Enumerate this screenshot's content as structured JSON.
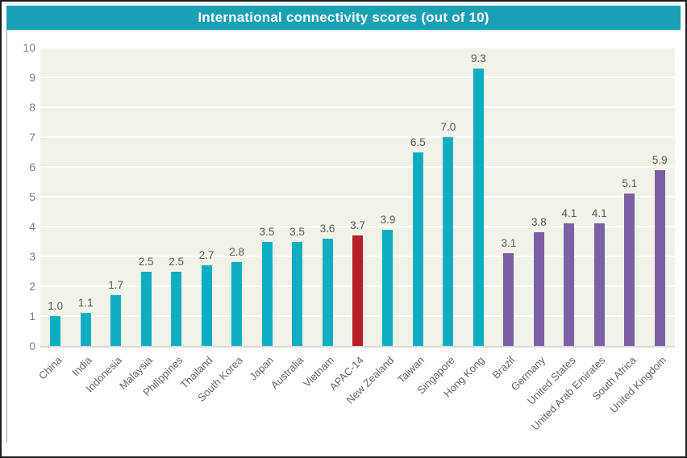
{
  "title": "International connectivity scores (out of 10)",
  "colors": {
    "header_bg": "#1a9fb3",
    "teal_bar": "#0fadc2",
    "red_bar": "#b72025",
    "purple_bar": "#7c5fa4",
    "plot_bg": "#f1f2e8",
    "gridline": "#ffffff",
    "axis_line": "#d9d9d9",
    "axis_text": "#7f7f7f",
    "value_text": "#595959",
    "category_text": "#666666",
    "outer_border": "#1c1c1c"
  },
  "chart_data": {
    "type": "bar",
    "title": "International connectivity scores (out of 10)",
    "xlabel": "",
    "ylabel": "",
    "ylim": [
      0,
      10
    ],
    "yticks": [
      0,
      1,
      2,
      3,
      4,
      5,
      6,
      7,
      8,
      9,
      10
    ],
    "grid": "horizontal",
    "legend": "none",
    "value_labels_shown": true,
    "categories": [
      "China",
      "India",
      "Indonesia",
      "Malaysia",
      "Philippines",
      "Thailand",
      "South Korea",
      "Japan",
      "Australia",
      "Vietnam",
      "APAC-14",
      "New Zealand",
      "Taiwan",
      "Singapore",
      "Hong Kong",
      "Brazil",
      "Germany",
      "United States",
      "United Arab Emirates",
      "South Africa",
      "United Kingdom"
    ],
    "values": [
      1.0,
      1.1,
      1.7,
      2.5,
      2.5,
      2.7,
      2.8,
      3.5,
      3.5,
      3.6,
      3.7,
      3.9,
      6.5,
      7.0,
      9.3,
      3.1,
      3.8,
      4.1,
      4.1,
      5.1,
      5.9
    ],
    "value_labels": [
      "1.0",
      "1.1",
      "1.7",
      "2.5",
      "2.5",
      "2.7",
      "2.8",
      "3.5",
      "3.5",
      "3.6",
      "3.7",
      "3.9",
      "6.5",
      "7.0",
      "9.3",
      "3.1",
      "3.8",
      "4.1",
      "4.1",
      "5.1",
      "5.9"
    ],
    "bar_colors": [
      "#0fadc2",
      "#0fadc2",
      "#0fadc2",
      "#0fadc2",
      "#0fadc2",
      "#0fadc2",
      "#0fadc2",
      "#0fadc2",
      "#0fadc2",
      "#0fadc2",
      "#b72025",
      "#0fadc2",
      "#0fadc2",
      "#0fadc2",
      "#0fadc2",
      "#7c5fa4",
      "#7c5fa4",
      "#7c5fa4",
      "#7c5fa4",
      "#7c5fa4",
      "#7c5fa4"
    ]
  }
}
